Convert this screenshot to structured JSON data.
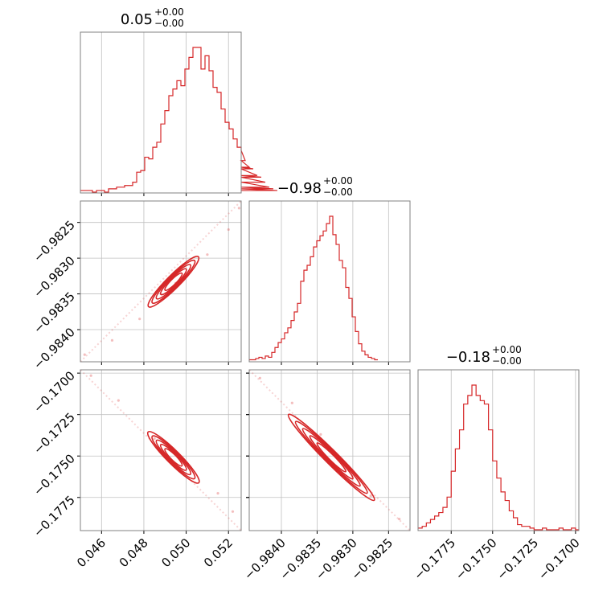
{
  "chart_data": {
    "type": "corner",
    "accent_color": "#d62728",
    "grid": true,
    "parameters": [
      {
        "title_value": "0.05",
        "title_plus": "+0.00",
        "title_minus": "−0.00",
        "range": [
          0.045,
          0.0526
        ],
        "ticks": [
          0.046,
          0.048,
          0.05,
          0.052
        ],
        "tick_labels": [
          "0.046",
          "0.048",
          "0.050",
          "0.052"
        ],
        "histogram": {
          "bin_start": 0.045,
          "bin_width": 0.00019,
          "counts": [
            1,
            1,
            1,
            0,
            1,
            1,
            0,
            2,
            2,
            3,
            3,
            4,
            4,
            6,
            12,
            13,
            21,
            20,
            27,
            30,
            41,
            49,
            58,
            62,
            67,
            64,
            74,
            81,
            87,
            87,
            74,
            82,
            73,
            63,
            60,
            50,
            42,
            38,
            32,
            27,
            25,
            19,
            15,
            14,
            10,
            9,
            6,
            3,
            2,
            1
          ]
        }
      },
      {
        "title_value": "−0.98",
        "title_plus": "+0.00",
        "title_minus": "−0.00",
        "range": [
          -0.98445,
          -0.9822
        ],
        "ticks": [
          -0.984,
          -0.9835,
          -0.983,
          -0.9825
        ],
        "tick_labels": [
          "−0.9840",
          "−0.9835",
          "−0.9830",
          "−0.9825"
        ],
        "histogram": {
          "bin_start": -0.98445,
          "bin_width": 4.5e-05,
          "counts": [
            1,
            1,
            2,
            3,
            2,
            4,
            3,
            7,
            11,
            15,
            18,
            23,
            27,
            33,
            40,
            47,
            65,
            74,
            78,
            85,
            93,
            98,
            102,
            106,
            112,
            118,
            103,
            95,
            82,
            76,
            60,
            51,
            36,
            24,
            14,
            8,
            5,
            3,
            2,
            1
          ]
        }
      },
      {
        "title_value": "−0.18",
        "title_plus": "+0.00",
        "title_minus": "−0.00",
        "range": [
          -0.1795,
          -0.1698
        ],
        "ticks": [
          -0.1775,
          -0.175,
          -0.1725,
          -0.17
        ],
        "tick_labels": [
          "−0.1775",
          "−0.1750",
          "−0.1725",
          "−0.1700"
        ],
        "histogram": {
          "bin_start": -0.1795,
          "bin_width": 0.00025,
          "counts": [
            1,
            2,
            4,
            6,
            8,
            10,
            13,
            19,
            34,
            47,
            58,
            73,
            78,
            84,
            78,
            75,
            73,
            58,
            40,
            30,
            22,
            17,
            11,
            7,
            3,
            2,
            2,
            1,
            0,
            0,
            1,
            0,
            0,
            0,
            1,
            0,
            0,
            1,
            0
          ]
        }
      }
    ],
    "pairs": [
      {
        "row": 1,
        "col": 0,
        "points": [
          [
            0.0452,
            -0.98435
          ],
          [
            0.0465,
            -0.98415
          ],
          [
            0.0478,
            -0.98385
          ],
          [
            0.0495,
            -0.98335
          ],
          [
            0.051,
            -0.98295
          ],
          [
            0.052,
            -0.9826
          ],
          [
            0.0525,
            -0.9823
          ]
        ],
        "contours": [
          {
            "center": [
              0.0494,
              -0.98333
            ],
            "rx": 0.00118,
            "ry": 6e-05
          },
          {
            "center": [
              0.0494,
              -0.98333
            ],
            "rx": 0.001,
            "ry": 5e-05
          },
          {
            "center": [
              0.0494,
              -0.98333
            ],
            "rx": 0.0008,
            "ry": 4e-05
          },
          {
            "center": [
              0.0494,
              -0.98333
            ],
            "rx": 0.0006,
            "ry": 3e-05
          },
          {
            "center": [
              0.0494,
              -0.98333
            ],
            "rx": 0.0004,
            "ry": 2e-05
          }
        ],
        "line": [
          [
            0.045,
            -0.98445
          ],
          [
            0.0526,
            -0.9822
          ]
        ]
      },
      {
        "row": 2,
        "col": 0,
        "points": [
          [
            0.0455,
            -0.17015
          ],
          [
            0.0468,
            -0.17165
          ],
          [
            0.0485,
            -0.17395
          ],
          [
            0.05,
            -0.17545
          ],
          [
            0.0515,
            -0.17725
          ],
          [
            0.0522,
            -0.17835
          ]
        ],
        "contours": [
          {
            "center": [
              0.0494,
              -0.17508
            ],
            "rx": 0.0012,
            "ry": 0.00013
          },
          {
            "center": [
              0.0494,
              -0.17508
            ],
            "rx": 0.001,
            "ry": 0.00011
          },
          {
            "center": [
              0.0494,
              -0.17508
            ],
            "rx": 0.0008,
            "ry": 9e-05
          },
          {
            "center": [
              0.0494,
              -0.17508
            ],
            "rx": 0.0006,
            "ry": 7e-05
          },
          {
            "center": [
              0.0494,
              -0.17508
            ],
            "rx": 0.0004,
            "ry": 5e-05
          }
        ],
        "line": [
          [
            0.045,
            -0.1698
          ],
          [
            0.0526,
            -0.1795
          ]
        ]
      },
      {
        "row": 2,
        "col": 1,
        "points": [
          [
            -0.9843,
            -0.1703
          ],
          [
            -0.98385,
            -0.1718
          ],
          [
            -0.98345,
            -0.1737
          ],
          [
            -0.9831,
            -0.1756
          ],
          [
            -0.98275,
            -0.1774
          ],
          [
            -0.98235,
            -0.1788
          ]
        ],
        "contours": [
          {
            "center": [
              -0.9833,
              -0.17508
            ],
            "rx": 0.0006,
            "ry": 0.00013
          },
          {
            "center": [
              -0.9833,
              -0.17508
            ],
            "rx": 0.0005,
            "ry": 0.00011
          },
          {
            "center": [
              -0.9833,
              -0.17508
            ],
            "rx": 0.0004,
            "ry": 9e-05
          },
          {
            "center": [
              -0.9833,
              -0.17508
            ],
            "rx": 0.0003,
            "ry": 7e-05
          },
          {
            "center": [
              -0.9833,
              -0.17508
            ],
            "rx": 0.0002,
            "ry": 5e-05
          }
        ],
        "line": [
          [
            -0.98445,
            -0.1698
          ],
          [
            -0.9822,
            -0.1795
          ]
        ]
      }
    ]
  }
}
